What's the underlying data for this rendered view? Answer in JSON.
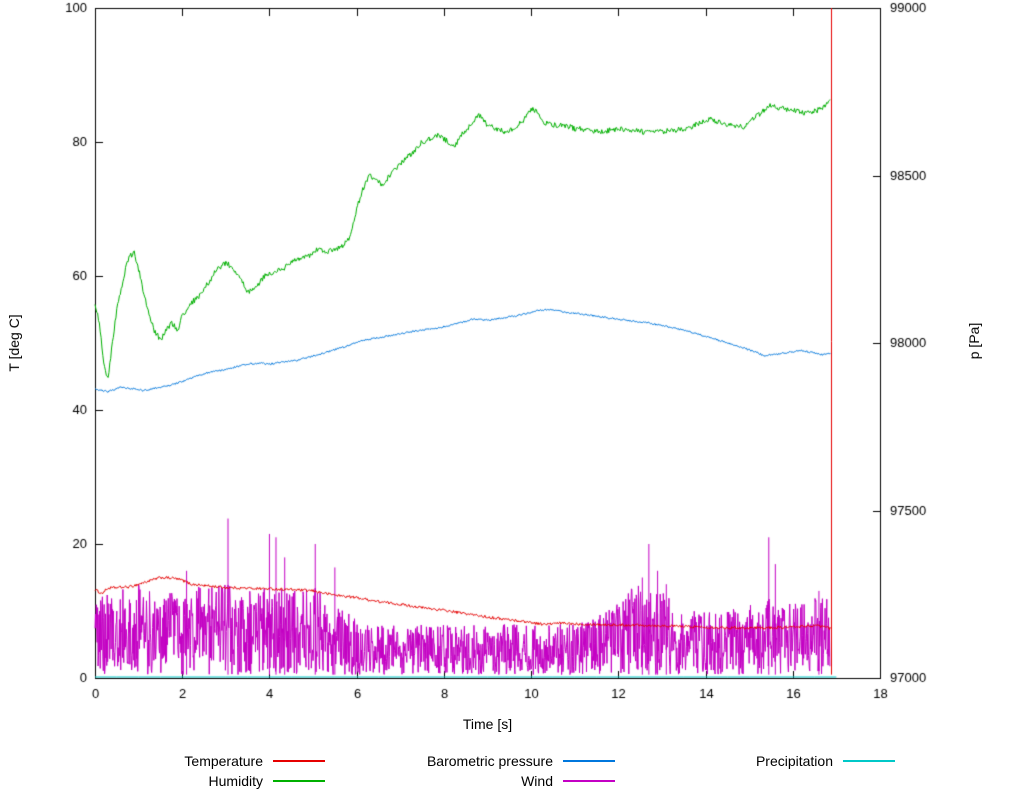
{
  "chart_data": {
    "type": "line",
    "title": "",
    "xlabel": "Time [s]",
    "ylabel_left": "T [deg C]",
    "ylabel_right": "p [Pa]",
    "xlim": [
      0,
      18
    ],
    "ylim_left": [
      0,
      100
    ],
    "ylim_right": [
      97000,
      99000
    ],
    "x_ticks": [
      0,
      2,
      4,
      6,
      8,
      10,
      12,
      14,
      16,
      18
    ],
    "y_ticks_left": [
      0,
      20,
      40,
      60,
      80,
      100
    ],
    "y_ticks_right": [
      97000,
      97500,
      98000,
      98500,
      99000
    ],
    "grid": false,
    "legend_position": "bottom",
    "draw_order": [
      4,
      3,
      2,
      1,
      0
    ],
    "event_line": {
      "x": 16.88,
      "y0": 0.5,
      "y1": 100,
      "color": "#e60000"
    },
    "series": [
      {
        "name": "Temperature",
        "color": "#e60000",
        "axis": "left",
        "noise": 0.2,
        "step": 0.02,
        "t_end": 16.85,
        "keypoints": [
          [
            0,
            13.2
          ],
          [
            0.15,
            12.6
          ],
          [
            0.3,
            13.4
          ],
          [
            0.5,
            13.5
          ],
          [
            0.8,
            13.6
          ],
          [
            1.0,
            14.0
          ],
          [
            1.3,
            14.6
          ],
          [
            1.5,
            15.0
          ],
          [
            1.8,
            14.9
          ],
          [
            2.0,
            14.6
          ],
          [
            2.2,
            14.0
          ],
          [
            2.5,
            13.8
          ],
          [
            3.0,
            13.5
          ],
          [
            3.5,
            13.4
          ],
          [
            4.0,
            13.3
          ],
          [
            4.5,
            13.2
          ],
          [
            5.0,
            13.0
          ],
          [
            5.3,
            12.6
          ],
          [
            5.6,
            12.3
          ],
          [
            6.0,
            12.0
          ],
          [
            6.5,
            11.4
          ],
          [
            7.0,
            11.0
          ],
          [
            7.5,
            10.5
          ],
          [
            8.0,
            10.1
          ],
          [
            8.5,
            9.6
          ],
          [
            9.0,
            9.1
          ],
          [
            9.5,
            8.7
          ],
          [
            10.0,
            8.3
          ],
          [
            10.3,
            8.0
          ],
          [
            10.7,
            8.2
          ],
          [
            11.0,
            8.1
          ],
          [
            11.5,
            8.0
          ],
          [
            12.0,
            7.9
          ],
          [
            12.5,
            7.9
          ],
          [
            13.0,
            7.8
          ],
          [
            13.5,
            7.7
          ],
          [
            14.0,
            7.6
          ],
          [
            14.5,
            7.5
          ],
          [
            15.0,
            7.5
          ],
          [
            15.5,
            7.5
          ],
          [
            16.0,
            7.6
          ],
          [
            16.4,
            7.8
          ],
          [
            16.7,
            7.7
          ],
          [
            16.85,
            7.4
          ]
        ]
      },
      {
        "name": "Humidity",
        "color": "#00b000",
        "axis": "left",
        "noise": 0.4,
        "step": 0.02,
        "t_end": 16.85,
        "keypoints": [
          [
            0,
            56
          ],
          [
            0.1,
            53
          ],
          [
            0.2,
            47
          ],
          [
            0.3,
            44.5
          ],
          [
            0.4,
            50
          ],
          [
            0.5,
            55
          ],
          [
            0.6,
            58
          ],
          [
            0.7,
            61
          ],
          [
            0.8,
            63
          ],
          [
            0.9,
            63.5
          ],
          [
            1.0,
            61
          ],
          [
            1.1,
            58
          ],
          [
            1.2,
            55
          ],
          [
            1.35,
            52
          ],
          [
            1.5,
            50.5
          ],
          [
            1.6,
            51.5
          ],
          [
            1.75,
            53
          ],
          [
            1.9,
            52
          ],
          [
            2.0,
            54
          ],
          [
            2.2,
            56
          ],
          [
            2.4,
            57
          ],
          [
            2.6,
            59
          ],
          [
            2.8,
            61
          ],
          [
            3.0,
            62
          ],
          [
            3.1,
            61.5
          ],
          [
            3.3,
            60
          ],
          [
            3.5,
            57.5
          ],
          [
            3.7,
            58.5
          ],
          [
            3.9,
            60
          ],
          [
            4.1,
            60.5
          ],
          [
            4.3,
            61
          ],
          [
            4.5,
            62
          ],
          [
            4.7,
            62.5
          ],
          [
            4.9,
            63
          ],
          [
            5.1,
            64
          ],
          [
            5.3,
            63.5
          ],
          [
            5.5,
            64
          ],
          [
            5.7,
            64.5
          ],
          [
            5.85,
            66
          ],
          [
            6.0,
            70
          ],
          [
            6.15,
            73
          ],
          [
            6.3,
            75
          ],
          [
            6.45,
            74.5
          ],
          [
            6.6,
            73.5
          ],
          [
            6.75,
            75
          ],
          [
            6.9,
            76
          ],
          [
            7.1,
            77.5
          ],
          [
            7.3,
            78.5
          ],
          [
            7.5,
            80
          ],
          [
            7.7,
            80.5
          ],
          [
            7.9,
            81
          ],
          [
            8.1,
            80
          ],
          [
            8.25,
            79.5
          ],
          [
            8.4,
            81
          ],
          [
            8.6,
            82.5
          ],
          [
            8.8,
            84
          ],
          [
            9.0,
            82.5
          ],
          [
            9.2,
            82
          ],
          [
            9.4,
            81.5
          ],
          [
            9.6,
            82
          ],
          [
            9.8,
            83
          ],
          [
            10.0,
            85
          ],
          [
            10.15,
            84.5
          ],
          [
            10.3,
            83
          ],
          [
            10.5,
            82.5
          ],
          [
            10.8,
            82.5
          ],
          [
            11.0,
            82
          ],
          [
            11.3,
            81.8
          ],
          [
            11.6,
            81.5
          ],
          [
            12.0,
            82
          ],
          [
            12.3,
            81.8
          ],
          [
            12.6,
            81.5
          ],
          [
            13.0,
            81.5
          ],
          [
            13.3,
            81.8
          ],
          [
            13.6,
            82
          ],
          [
            13.9,
            83
          ],
          [
            14.1,
            83.5
          ],
          [
            14.3,
            83
          ],
          [
            14.6,
            82.5
          ],
          [
            14.9,
            82.3
          ],
          [
            15.1,
            83.5
          ],
          [
            15.3,
            84.5
          ],
          [
            15.5,
            85.5
          ],
          [
            15.7,
            85
          ],
          [
            16.0,
            84.8
          ],
          [
            16.3,
            84.3
          ],
          [
            16.6,
            84.8
          ],
          [
            16.85,
            86
          ]
        ]
      },
      {
        "name": "Barometric pressure",
        "color": "#0077dd",
        "axis": "right",
        "noise": 2.5,
        "step": 0.02,
        "t_end": 16.85,
        "keypoints": [
          [
            0,
            97862
          ],
          [
            0.3,
            97855
          ],
          [
            0.6,
            97868
          ],
          [
            0.9,
            97863
          ],
          [
            1.1,
            97858
          ],
          [
            1.4,
            97866
          ],
          [
            1.7,
            97873
          ],
          [
            2.0,
            97885
          ],
          [
            2.3,
            97900
          ],
          [
            2.6,
            97912
          ],
          [
            2.9,
            97918
          ],
          [
            3.2,
            97928
          ],
          [
            3.5,
            97938
          ],
          [
            3.8,
            97940
          ],
          [
            4.0,
            97937
          ],
          [
            4.3,
            97944
          ],
          [
            4.6,
            97947
          ],
          [
            4.9,
            97958
          ],
          [
            5.2,
            97968
          ],
          [
            5.5,
            97980
          ],
          [
            5.8,
            97992
          ],
          [
            6.1,
            98006
          ],
          [
            6.4,
            98014
          ],
          [
            6.7,
            98020
          ],
          [
            7.0,
            98028
          ],
          [
            7.3,
            98035
          ],
          [
            7.6,
            98040
          ],
          [
            7.9,
            98046
          ],
          [
            8.2,
            98055
          ],
          [
            8.5,
            98065
          ],
          [
            8.7,
            98072
          ],
          [
            8.9,
            98068
          ],
          [
            9.1,
            98070
          ],
          [
            9.4,
            98076
          ],
          [
            9.7,
            98082
          ],
          [
            10.0,
            98092
          ],
          [
            10.2,
            98098
          ],
          [
            10.4,
            98100
          ],
          [
            10.6,
            98096
          ],
          [
            10.9,
            98090
          ],
          [
            11.2,
            98086
          ],
          [
            11.5,
            98080
          ],
          [
            11.8,
            98074
          ],
          [
            12.1,
            98070
          ],
          [
            12.4,
            98064
          ],
          [
            12.7,
            98060
          ],
          [
            13.0,
            98052
          ],
          [
            13.3,
            98044
          ],
          [
            13.6,
            98034
          ],
          [
            13.9,
            98024
          ],
          [
            14.2,
            98012
          ],
          [
            14.5,
            98000
          ],
          [
            14.8,
            97988
          ],
          [
            15.1,
            97975
          ],
          [
            15.35,
            97962
          ],
          [
            15.6,
            97966
          ],
          [
            15.9,
            97972
          ],
          [
            16.2,
            97978
          ],
          [
            16.5,
            97970
          ],
          [
            16.7,
            97965
          ],
          [
            16.85,
            97968
          ]
        ]
      },
      {
        "name": "Wind",
        "color": "#c400c4",
        "axis": "left",
        "mode": "noise-band",
        "base": 0.5,
        "step": 0.01,
        "t_end": 16.85,
        "envelope": [
          [
            0,
            12
          ],
          [
            0.5,
            13
          ],
          [
            1,
            14
          ],
          [
            1.5,
            13
          ],
          [
            2,
            13
          ],
          [
            2.5,
            14
          ],
          [
            3,
            14
          ],
          [
            3.5,
            13
          ],
          [
            4,
            14
          ],
          [
            4.5,
            13
          ],
          [
            5,
            14
          ],
          [
            5.3,
            13
          ],
          [
            5.7,
            10
          ],
          [
            6,
            9
          ],
          [
            6.5,
            8
          ],
          [
            7,
            8
          ],
          [
            8,
            8
          ],
          [
            9,
            8
          ],
          [
            10,
            8
          ],
          [
            11,
            8
          ],
          [
            11.5,
            9
          ],
          [
            12,
            13
          ],
          [
            12.5,
            14
          ],
          [
            13,
            13
          ],
          [
            13.5,
            10
          ],
          [
            14,
            10
          ],
          [
            14.5,
            10
          ],
          [
            15,
            11
          ],
          [
            15.5,
            12
          ],
          [
            16,
            11
          ],
          [
            16.5,
            12
          ],
          [
            16.85,
            12
          ]
        ],
        "spikes": [
          [
            2.1,
            16
          ],
          [
            3.05,
            23.8
          ],
          [
            4.0,
            21.5
          ],
          [
            4.15,
            21
          ],
          [
            4.35,
            18
          ],
          [
            5.05,
            20
          ],
          [
            5.5,
            16.5
          ],
          [
            12.55,
            15
          ],
          [
            12.7,
            20
          ],
          [
            12.9,
            16
          ],
          [
            13.1,
            14
          ],
          [
            15.45,
            21
          ],
          [
            15.6,
            17
          ],
          [
            16.6,
            13
          ]
        ]
      },
      {
        "name": "Precipitation",
        "color": "#00c8c8",
        "axis": "left",
        "noise": 0,
        "step": 0.5,
        "t_end": 16.85,
        "keypoints": [
          [
            0,
            0.15
          ],
          [
            16.85,
            0.15
          ]
        ]
      }
    ]
  }
}
